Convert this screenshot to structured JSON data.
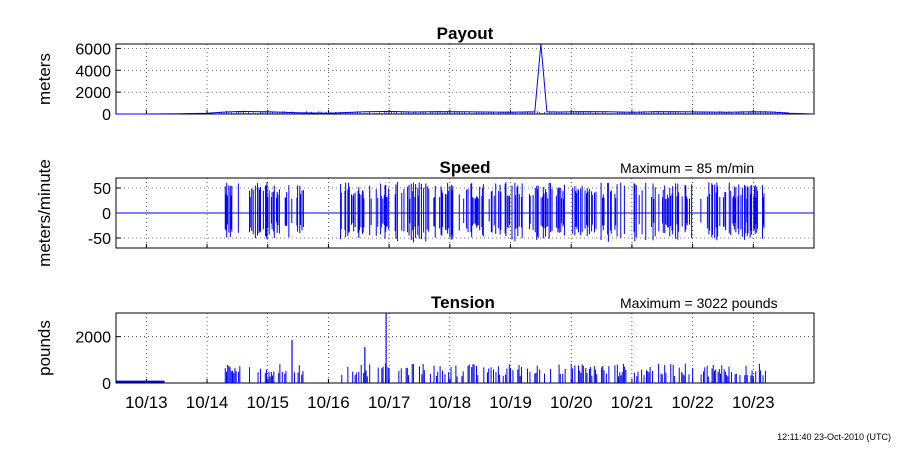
{
  "colors": {
    "series": "#0000ff",
    "axis": "#000000",
    "grid": "#000000",
    "background": "#ffffff"
  },
  "x_tick_labels": [
    "10/13",
    "10/14",
    "10/15",
    "10/16",
    "10/17",
    "10/18",
    "10/19",
    "10/20",
    "10/21",
    "10/22",
    "10/23"
  ],
  "footer_timestamp": "12:11:40 23-Oct-2010 (UTC)",
  "chart_data": [
    {
      "type": "line",
      "title": "Payout",
      "subtitle": "",
      "ylabel": "meters",
      "ylim": [
        0,
        6400
      ],
      "yticks": [
        0,
        2000,
        4000,
        6000
      ],
      "ytick_labels": [
        "0",
        "2000",
        "4000",
        "6000"
      ],
      "xlim": [
        12.5,
        24.0
      ],
      "grid": true,
      "series": [
        {
          "x": [
            12.5,
            13.0,
            13.5,
            14.0,
            14.3,
            14.6,
            15.0,
            15.5,
            16.0,
            16.3,
            16.6,
            17.0,
            17.4,
            17.8,
            18.2,
            18.6,
            19.0,
            19.4,
            19.5,
            19.6,
            19.8,
            20.2,
            20.6,
            21.0,
            21.4,
            21.8,
            22.2,
            22.6,
            23.0,
            23.3,
            23.6,
            24.0
          ],
          "values": [
            0,
            0,
            20,
            60,
            180,
            240,
            200,
            120,
            60,
            140,
            200,
            240,
            180,
            220,
            200,
            180,
            160,
            200,
            6400,
            200,
            180,
            220,
            200,
            160,
            220,
            200,
            180,
            160,
            200,
            180,
            60,
            0
          ]
        }
      ]
    },
    {
      "type": "line",
      "title": "Speed",
      "subtitle": "Maximum = 85 m/min",
      "ylabel": "meters/minute",
      "ylim": [
        -70,
        70
      ],
      "yticks": [
        -50,
        0,
        50
      ],
      "ytick_labels": [
        "-50",
        "0",
        "50"
      ],
      "xlim": [
        12.5,
        24.0
      ],
      "grid": true,
      "active_intervals": [
        [
          14.3,
          14.55
        ],
        [
          14.7,
          15.6
        ],
        [
          16.2,
          17.0
        ],
        [
          17.1,
          18.0
        ],
        [
          18.0,
          19.0
        ],
        [
          19.0,
          19.9
        ],
        [
          20.0,
          20.9
        ],
        [
          21.0,
          22.0
        ],
        [
          22.1,
          22.9
        ],
        [
          22.9,
          23.2
        ]
      ],
      "peak_amplitude": 62,
      "series": []
    },
    {
      "type": "line",
      "title": "Tension",
      "subtitle": "Maximum = 3022 pounds",
      "ylabel": "pounds",
      "ylim": [
        0,
        3022
      ],
      "yticks": [
        0,
        2000
      ],
      "ytick_labels": [
        "0",
        "2000"
      ],
      "xlim": [
        12.5,
        24.0
      ],
      "grid": true,
      "baseline_segment": {
        "x": [
          12.5,
          13.3
        ],
        "value": 60
      },
      "active_intervals": [
        [
          14.3,
          14.55
        ],
        [
          14.7,
          15.6
        ],
        [
          16.2,
          17.0
        ],
        [
          17.1,
          18.0
        ],
        [
          18.0,
          19.0
        ],
        [
          19.0,
          19.9
        ],
        [
          20.0,
          20.9
        ],
        [
          21.0,
          22.0
        ],
        [
          22.1,
          22.9
        ],
        [
          22.9,
          23.2
        ]
      ],
      "typical_level": 700,
      "spikes": [
        {
          "x": 15.4,
          "value": 1850
        },
        {
          "x": 16.95,
          "value": 3022
        },
        {
          "x": 16.6,
          "value": 1550
        }
      ],
      "series": []
    }
  ]
}
